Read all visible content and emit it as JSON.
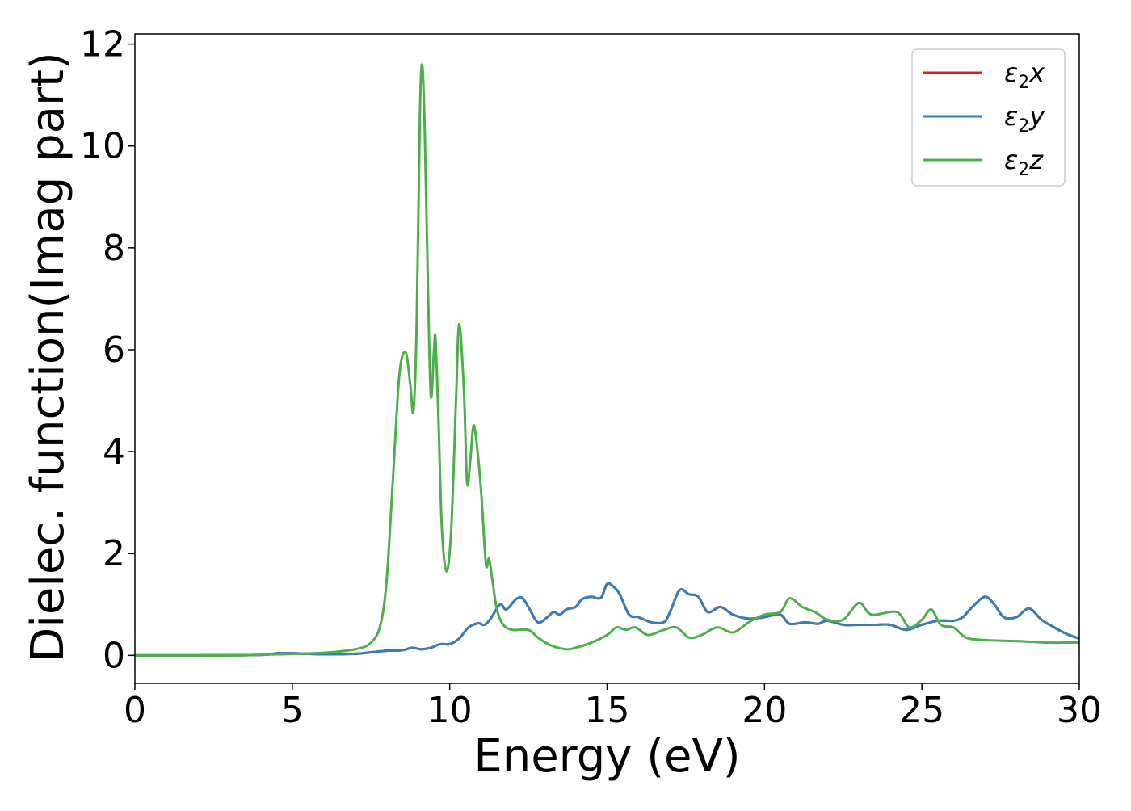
{
  "chart_data": {
    "type": "line",
    "title": "",
    "xlabel": "Energy (eV)",
    "ylabel": "Dielec. function(Imag part)",
    "xlim": [
      0,
      30
    ],
    "ylim": [
      -0.55,
      12.2
    ],
    "xticks": [
      0,
      5,
      10,
      15,
      20,
      25,
      30
    ],
    "xtick_labels": [
      "0",
      "5",
      "10",
      "15",
      "20",
      "25",
      "30"
    ],
    "yticks": [
      0,
      2,
      4,
      6,
      8,
      10,
      12
    ],
    "ytick_labels": [
      "0",
      "2",
      "4",
      "6",
      "8",
      "10",
      "12"
    ],
    "grid": false,
    "legend_position": "top-right",
    "series": [
      {
        "name": "ε2x",
        "name_base": "ε",
        "name_sub": "2",
        "name_tail": "x",
        "color": "#e41a1c",
        "points": [
          [
            0,
            0
          ],
          [
            2,
            0
          ],
          [
            4,
            0.01
          ],
          [
            4.5,
            0.04
          ],
          [
            5,
            0.04
          ],
          [
            5.5,
            0.03
          ],
          [
            6,
            0.02
          ],
          [
            7,
            0.03
          ],
          [
            7.5,
            0.06
          ],
          [
            8,
            0.09
          ],
          [
            8.5,
            0.1
          ],
          [
            8.8,
            0.15
          ],
          [
            9.1,
            0.12
          ],
          [
            9.4,
            0.15
          ],
          [
            9.7,
            0.22
          ],
          [
            10,
            0.22
          ],
          [
            10.3,
            0.33
          ],
          [
            10.6,
            0.55
          ],
          [
            10.9,
            0.63
          ],
          [
            11.1,
            0.6
          ],
          [
            11.3,
            0.72
          ],
          [
            11.6,
            1.0
          ],
          [
            11.8,
            0.9
          ],
          [
            12.1,
            1.1
          ],
          [
            12.3,
            1.13
          ],
          [
            12.5,
            0.95
          ],
          [
            12.8,
            0.65
          ],
          [
            13.1,
            0.75
          ],
          [
            13.3,
            0.85
          ],
          [
            13.5,
            0.8
          ],
          [
            13.7,
            0.9
          ],
          [
            14,
            0.95
          ],
          [
            14.2,
            1.1
          ],
          [
            14.5,
            1.15
          ],
          [
            14.8,
            1.13
          ],
          [
            15,
            1.4
          ],
          [
            15.2,
            1.35
          ],
          [
            15.4,
            1.2
          ],
          [
            15.7,
            0.8
          ],
          [
            16,
            0.75
          ],
          [
            16.4,
            0.65
          ],
          [
            16.8,
            0.65
          ],
          [
            17,
            0.85
          ],
          [
            17.3,
            1.28
          ],
          [
            17.6,
            1.2
          ],
          [
            17.9,
            1.15
          ],
          [
            18.2,
            0.85
          ],
          [
            18.6,
            0.95
          ],
          [
            19,
            0.8
          ],
          [
            19.5,
            0.72
          ],
          [
            20,
            0.75
          ],
          [
            20.5,
            0.8
          ],
          [
            20.8,
            0.62
          ],
          [
            21.3,
            0.65
          ],
          [
            21.7,
            0.62
          ],
          [
            22,
            0.68
          ],
          [
            22.5,
            0.6
          ],
          [
            23,
            0.6
          ],
          [
            23.5,
            0.6
          ],
          [
            24,
            0.6
          ],
          [
            24.5,
            0.5
          ],
          [
            25,
            0.6
          ],
          [
            25.5,
            0.68
          ],
          [
            26,
            0.68
          ],
          [
            26.3,
            0.75
          ],
          [
            26.6,
            0.95
          ],
          [
            27,
            1.15
          ],
          [
            27.3,
            1.0
          ],
          [
            27.6,
            0.75
          ],
          [
            28,
            0.75
          ],
          [
            28.4,
            0.92
          ],
          [
            28.8,
            0.7
          ],
          [
            29.2,
            0.55
          ],
          [
            29.6,
            0.42
          ],
          [
            30,
            0.33
          ]
        ]
      },
      {
        "name": "ε2y",
        "name_base": "ε",
        "name_sub": "2",
        "name_tail": "y",
        "color": "#377eb8",
        "points": [
          [
            0,
            0
          ],
          [
            2,
            0
          ],
          [
            4,
            0.01
          ],
          [
            4.5,
            0.04
          ],
          [
            5,
            0.04
          ],
          [
            5.5,
            0.03
          ],
          [
            6,
            0.02
          ],
          [
            7,
            0.03
          ],
          [
            7.5,
            0.06
          ],
          [
            8,
            0.09
          ],
          [
            8.5,
            0.1
          ],
          [
            8.8,
            0.15
          ],
          [
            9.1,
            0.12
          ],
          [
            9.4,
            0.15
          ],
          [
            9.7,
            0.22
          ],
          [
            10,
            0.22
          ],
          [
            10.3,
            0.33
          ],
          [
            10.6,
            0.55
          ],
          [
            10.9,
            0.63
          ],
          [
            11.1,
            0.6
          ],
          [
            11.3,
            0.72
          ],
          [
            11.6,
            1.0
          ],
          [
            11.8,
            0.9
          ],
          [
            12.1,
            1.1
          ],
          [
            12.3,
            1.13
          ],
          [
            12.5,
            0.95
          ],
          [
            12.8,
            0.65
          ],
          [
            13.1,
            0.75
          ],
          [
            13.3,
            0.85
          ],
          [
            13.5,
            0.8
          ],
          [
            13.7,
            0.9
          ],
          [
            14,
            0.95
          ],
          [
            14.2,
            1.1
          ],
          [
            14.5,
            1.15
          ],
          [
            14.8,
            1.13
          ],
          [
            15,
            1.4
          ],
          [
            15.2,
            1.35
          ],
          [
            15.4,
            1.2
          ],
          [
            15.7,
            0.8
          ],
          [
            16,
            0.75
          ],
          [
            16.4,
            0.65
          ],
          [
            16.8,
            0.65
          ],
          [
            17,
            0.85
          ],
          [
            17.3,
            1.28
          ],
          [
            17.6,
            1.2
          ],
          [
            17.9,
            1.15
          ],
          [
            18.2,
            0.85
          ],
          [
            18.6,
            0.95
          ],
          [
            19,
            0.8
          ],
          [
            19.5,
            0.72
          ],
          [
            20,
            0.75
          ],
          [
            20.5,
            0.8
          ],
          [
            20.8,
            0.62
          ],
          [
            21.3,
            0.65
          ],
          [
            21.7,
            0.62
          ],
          [
            22,
            0.68
          ],
          [
            22.5,
            0.6
          ],
          [
            23,
            0.6
          ],
          [
            23.5,
            0.6
          ],
          [
            24,
            0.6
          ],
          [
            24.5,
            0.5
          ],
          [
            25,
            0.6
          ],
          [
            25.5,
            0.68
          ],
          [
            26,
            0.68
          ],
          [
            26.3,
            0.75
          ],
          [
            26.6,
            0.95
          ],
          [
            27,
            1.15
          ],
          [
            27.3,
            1.0
          ],
          [
            27.6,
            0.75
          ],
          [
            28,
            0.75
          ],
          [
            28.4,
            0.92
          ],
          [
            28.8,
            0.7
          ],
          [
            29.2,
            0.55
          ],
          [
            29.6,
            0.42
          ],
          [
            30,
            0.33
          ]
        ]
      },
      {
        "name": "ε2z",
        "name_base": "ε",
        "name_sub": "2",
        "name_tail": "z",
        "color": "#4daf4a",
        "points": [
          [
            0,
            0
          ],
          [
            3,
            0
          ],
          [
            4.5,
            0.02
          ],
          [
            6,
            0.05
          ],
          [
            7,
            0.12
          ],
          [
            7.5,
            0.25
          ],
          [
            7.8,
            0.6
          ],
          [
            8,
            1.5
          ],
          [
            8.2,
            3.5
          ],
          [
            8.4,
            5.5
          ],
          [
            8.6,
            5.95
          ],
          [
            8.75,
            5.3
          ],
          [
            8.85,
            4.8
          ],
          [
            8.95,
            6.5
          ],
          [
            9.05,
            10.5
          ],
          [
            9.12,
            11.6
          ],
          [
            9.2,
            10.5
          ],
          [
            9.3,
            7.5
          ],
          [
            9.4,
            5.1
          ],
          [
            9.5,
            6.0
          ],
          [
            9.55,
            6.2
          ],
          [
            9.65,
            4.5
          ],
          [
            9.75,
            2.5
          ],
          [
            9.9,
            1.65
          ],
          [
            10.05,
            2.5
          ],
          [
            10.2,
            5.0
          ],
          [
            10.3,
            6.5
          ],
          [
            10.45,
            5.2
          ],
          [
            10.55,
            3.4
          ],
          [
            10.65,
            3.8
          ],
          [
            10.75,
            4.5
          ],
          [
            10.85,
            4.2
          ],
          [
            11.0,
            3.2
          ],
          [
            11.15,
            1.8
          ],
          [
            11.25,
            1.9
          ],
          [
            11.35,
            1.5
          ],
          [
            11.5,
            0.9
          ],
          [
            11.7,
            0.6
          ],
          [
            12,
            0.5
          ],
          [
            12.5,
            0.5
          ],
          [
            12.8,
            0.35
          ],
          [
            13.2,
            0.2
          ],
          [
            13.7,
            0.12
          ],
          [
            14,
            0.15
          ],
          [
            14.5,
            0.25
          ],
          [
            15,
            0.4
          ],
          [
            15.3,
            0.55
          ],
          [
            15.6,
            0.5
          ],
          [
            15.9,
            0.55
          ],
          [
            16.3,
            0.4
          ],
          [
            16.8,
            0.5
          ],
          [
            17.2,
            0.55
          ],
          [
            17.6,
            0.35
          ],
          [
            18,
            0.4
          ],
          [
            18.5,
            0.55
          ],
          [
            19,
            0.45
          ],
          [
            19.5,
            0.65
          ],
          [
            20,
            0.8
          ],
          [
            20.5,
            0.85
          ],
          [
            20.8,
            1.12
          ],
          [
            21.2,
            0.95
          ],
          [
            21.6,
            0.85
          ],
          [
            22,
            0.7
          ],
          [
            22.5,
            0.7
          ],
          [
            23,
            1.03
          ],
          [
            23.4,
            0.8
          ],
          [
            24.2,
            0.85
          ],
          [
            24.6,
            0.55
          ],
          [
            25.0,
            0.7
          ],
          [
            25.3,
            0.9
          ],
          [
            25.6,
            0.6
          ],
          [
            26.0,
            0.55
          ],
          [
            26.4,
            0.35
          ],
          [
            27,
            0.3
          ],
          [
            28,
            0.28
          ],
          [
            29,
            0.25
          ],
          [
            29.5,
            0.25
          ],
          [
            30,
            0.25
          ]
        ]
      }
    ]
  }
}
